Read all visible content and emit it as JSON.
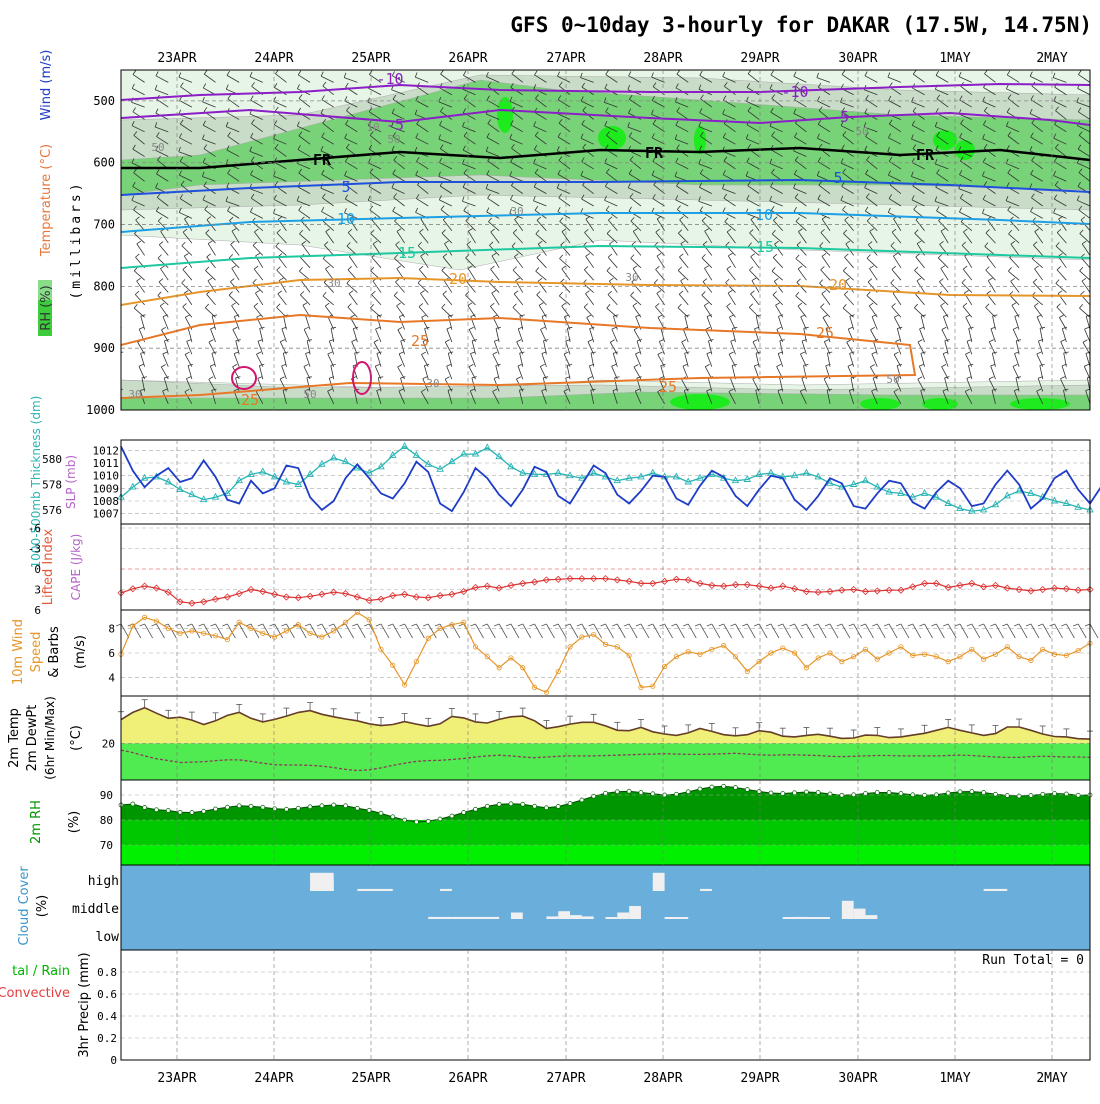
{
  "title": "GFS 0~10day 3-hourly for DAKAR (17.5W, 14.75N)",
  "date_labels": [
    "23APR",
    "24APR",
    "25APR",
    "26APR",
    "27APR",
    "28APR",
    "29APR",
    "30APR",
    "1MAY",
    "2MAY"
  ],
  "colors": {
    "temp_cold": "#8c1ec8",
    "temp_freezing": "#000000",
    "temp_blue": "#1e50dc",
    "temp_sky": "#1ea0e6",
    "temp_teal": "#1ec8a0",
    "temp_orange": "#e69628",
    "temp_darkorange": "#e67828",
    "rh_light": "#e6f5e6",
    "rh_mid": "#c8dcc8",
    "rh_green": "#78d278",
    "rh_bright": "#1eeb1e",
    "slp": "#1e3cc8",
    "thick": "#28b4b4",
    "lifted": "#dc3232",
    "wind10": "#e69628",
    "temp2m_fill": "#f0f078",
    "dew_fill": "#50eb50",
    "rh2m_dark": "#009600",
    "rh2m_mid": "#00c800",
    "rh2m_light": "#00f000",
    "cloud_bg": "#6aaedc",
    "cloud_bar": "#f0f0f0"
  },
  "panels": {
    "upper": {
      "labels": {
        "rh": "RH (%)",
        "temp": "Temperature (°C)",
        "wind": "Wind (m/s)",
        "pres": "(millibars)"
      },
      "yticks": [
        "500",
        "600",
        "700",
        "800",
        "900",
        "1000"
      ],
      "contour_labels": [
        {
          "t": "-10",
          "c": "temp_cold"
        },
        {
          "t": "-10",
          "c": "temp_cold"
        },
        {
          "t": "-5",
          "c": "temp_cold"
        },
        {
          "t": "-5",
          "c": "temp_cold"
        },
        {
          "t": "FR",
          "c": "temp_freezing"
        },
        {
          "t": "FR",
          "c": "temp_freezing"
        },
        {
          "t": "FR",
          "c": "temp_freezing"
        },
        {
          "t": "5",
          "c": "temp_blue"
        },
        {
          "t": "5",
          "c": "temp_blue"
        },
        {
          "t": "10",
          "c": "temp_sky"
        },
        {
          "t": "10",
          "c": "temp_sky"
        },
        {
          "t": "15",
          "c": "temp_teal"
        },
        {
          "t": "15",
          "c": "temp_teal"
        },
        {
          "t": "20",
          "c": "temp_orange"
        },
        {
          "t": "20",
          "c": "temp_orange"
        },
        {
          "t": "25",
          "c": "temp_darkorange"
        },
        {
          "t": "25",
          "c": "temp_darkorange"
        },
        {
          "t": "25",
          "c": "temp_darkorange"
        },
        {
          "t": "25",
          "c": "temp_darkorange"
        },
        {
          "t": "10",
          "c": "rh_label"
        },
        {
          "t": "50",
          "c": "rh_label"
        },
        {
          "t": "50",
          "c": "rh_label"
        },
        {
          "t": "50",
          "c": "rh_label"
        },
        {
          "t": "30",
          "c": "rh_label"
        },
        {
          "t": "30",
          "c": "rh_label"
        },
        {
          "t": "30",
          "c": "rh_label"
        },
        {
          "t": "30",
          "c": "rh_label"
        },
        {
          "t": "50",
          "c": "rh_label"
        },
        {
          "t": "30",
          "c": "rh_label"
        },
        {
          "t": "50",
          "c": "rh_label"
        }
      ]
    },
    "slp": {
      "label_thick": "1000-500mb Thickness (dm)",
      "label_slp": "SLP (mb)",
      "left_ticks": [
        "580",
        "578",
        "576"
      ],
      "right_ticks": [
        "1012",
        "1011",
        "1010",
        "1009",
        "1008",
        "1007"
      ]
    },
    "li": {
      "label_li": "Lifted Index",
      "label_cape": "CAPE (J/kg)",
      "yticks": [
        "-6",
        "-3",
        "0",
        "3",
        "6"
      ]
    },
    "wind": {
      "label_a": "10m Wind",
      "label_b": "Speed",
      "label_c": "& Barbs",
      "label_unit": "(m/s)",
      "yticks": [
        "8",
        "6",
        "4"
      ]
    },
    "temp2m": {
      "label_a": "2m Temp",
      "label_b": "2m DewPt",
      "label_c": "(6hr Min/Max)",
      "label_unit": "(°C)",
      "yticks": [
        "20"
      ]
    },
    "rh2m": {
      "label": "2m RH",
      "label_unit": "(%)",
      "yticks": [
        "90",
        "80",
        "70"
      ]
    },
    "cloud": {
      "label": "Cloud Cover",
      "label_unit": "(%)",
      "levels": [
        "high",
        "middle",
        "low"
      ]
    },
    "precip": {
      "label_a": "tal / Rain",
      "label_b": "Convective",
      "label_c": "3hr Precip (mm)",
      "yticks": [
        "0.8",
        "0.6",
        "0.4",
        "0.2",
        "0"
      ],
      "run_total": "Run Total = 0"
    }
  },
  "chart_data": [
    {
      "type": "line",
      "title": "SLP (mb)",
      "ylim": [
        1006.5,
        1012.5
      ],
      "series": [
        {
          "name": "SLP (mb)",
          "values": [
            1012.3,
            1010.4,
            1009.1,
            1010.0,
            1010.6,
            1009.5,
            1009.8,
            1011.2,
            1009.9,
            1008.1,
            1007.8,
            1009.6,
            1008.6,
            1009.0,
            1010.8,
            1010.6,
            1008.3,
            1007.3,
            1008.0,
            1009.8,
            1010.9,
            1009.8,
            1008.6,
            1008.2,
            1009.4,
            1011.1,
            1010.3,
            1007.8,
            1007.2,
            1008.7,
            1010.6,
            1009.8,
            1008.5,
            1007.6,
            1008.9,
            1010.7,
            1010.3,
            1008.4,
            1007.8,
            1009.3,
            1010.8,
            1010.2,
            1008.5,
            1007.8,
            1008.8,
            1010.0,
            1009.9,
            1008.2,
            1007.7,
            1009.2,
            1010.4,
            1009.9,
            1008.4,
            1007.6,
            1008.9,
            1010.0,
            1009.8,
            1008.1,
            1007.3,
            1008.4,
            1009.8,
            1009.4,
            1007.6,
            1007.4,
            1008.6,
            1009.6,
            1009.4,
            1007.9,
            1007.4,
            1008.7,
            1009.6,
            1009.0,
            1007.6,
            1007.8,
            1009.3,
            1010.4,
            1009.3,
            1007.4,
            1008.2,
            1009.8,
            1010.4,
            1008.9,
            1007.8,
            1009.2
          ]
        }
      ]
    },
    {
      "type": "line",
      "title": "1000-500mb Thickness (dm)",
      "ylim": [
        575.2,
        581.2
      ],
      "series": [
        {
          "name": "1000-500mb Thickness (dm)",
          "values": [
            577.0,
            577.8,
            578.5,
            578.6,
            578.2,
            577.6,
            577.2,
            576.8,
            577.0,
            577.3,
            578.3,
            578.8,
            579.0,
            578.6,
            578.2,
            578.0,
            578.8,
            579.6,
            580.1,
            579.8,
            579.3,
            578.9,
            579.4,
            580.3,
            581.0,
            580.3,
            579.6,
            579.2,
            579.8,
            580.4,
            580.4,
            580.9,
            580.2,
            579.4,
            578.9,
            578.8,
            578.8,
            578.9,
            578.7,
            578.5,
            578.9,
            578.6,
            578.3,
            578.5,
            578.6,
            578.9,
            578.6,
            578.6,
            578.2,
            578.5,
            578.8,
            578.5,
            578.3,
            578.4,
            578.8,
            578.9,
            578.6,
            578.7,
            578.9,
            578.6,
            578.1,
            577.8,
            578.0,
            578.3,
            577.8,
            577.4,
            577.3,
            577.0,
            577.3,
            577.0,
            576.5,
            576.1,
            575.9,
            576.0,
            576.4,
            577.1,
            577.5,
            577.3,
            577.0,
            576.7,
            576.5,
            576.2,
            576.0
          ]
        }
      ]
    },
    {
      "type": "line",
      "title": "Lifted Index",
      "ylim": [
        -6,
        6
      ],
      "series": [
        {
          "name": "Lifted Index",
          "values": [
            3.5,
            2.9,
            2.5,
            2.8,
            3.4,
            4.8,
            5.0,
            4.8,
            4.4,
            4.1,
            3.6,
            3.0,
            3.3,
            3.7,
            4.1,
            4.2,
            4.0,
            3.7,
            3.4,
            3.6,
            4.1,
            4.6,
            4.4,
            3.9,
            3.7,
            4.1,
            4.2,
            3.9,
            3.7,
            3.3,
            2.7,
            2.5,
            2.8,
            2.4,
            2.1,
            1.9,
            1.6,
            1.5,
            1.4,
            1.4,
            1.4,
            1.4,
            1.6,
            1.8,
            2.1,
            2.1,
            1.8,
            1.5,
            1.6,
            2.1,
            2.4,
            2.5,
            2.3,
            2.3,
            2.5,
            2.8,
            2.5,
            2.9,
            3.3,
            3.4,
            3.3,
            3.1,
            3.0,
            3.3,
            3.2,
            3.1,
            3.1,
            2.6,
            2.1,
            2.1,
            2.7,
            2.4,
            2.1,
            2.6,
            2.4,
            2.8,
            3.0,
            3.2,
            3.0,
            2.8,
            2.9,
            3.1,
            3.0
          ]
        }
      ]
    },
    {
      "type": "line",
      "title": "10m Wind Speed (m/s)",
      "ylim": [
        2.5,
        9.5
      ],
      "series": [
        {
          "name": "Speed",
          "values": [
            5.9,
            8.2,
            8.9,
            8.6,
            8.0,
            7.6,
            7.8,
            7.6,
            7.4,
            7.1,
            8.5,
            8.0,
            7.6,
            7.3,
            7.8,
            8.3,
            7.6,
            7.3,
            7.8,
            8.5,
            9.3,
            8.7,
            6.3,
            5.0,
            3.4,
            5.3,
            7.2,
            8.0,
            8.3,
            8.5,
            6.5,
            5.7,
            4.8,
            5.6,
            4.8,
            3.2,
            2.8,
            4.5,
            6.5,
            7.3,
            7.5,
            6.7,
            6.5,
            5.8,
            3.2,
            3.3,
            4.9,
            5.7,
            6.1,
            5.9,
            6.3,
            6.6,
            5.7,
            4.5,
            5.3,
            6.0,
            6.4,
            6.0,
            4.8,
            5.6,
            6.0,
            5.3,
            5.7,
            6.3,
            5.5,
            6.0,
            6.5,
            5.8,
            5.9,
            5.7,
            5.3,
            5.7,
            6.3,
            5.5,
            5.9,
            6.5,
            5.7,
            5.4,
            6.3,
            5.9,
            5.8,
            6.2,
            6.8
          ]
        }
      ]
    },
    {
      "type": "area",
      "title": "2m Temp / DewPt (°C)",
      "ylim": [
        10,
        33
      ],
      "series": [
        {
          "name": "2m Temp",
          "values": [
            26.5,
            28.5,
            29.8,
            28.3,
            26.9,
            27.2,
            26.4,
            25.2,
            26.2,
            27.7,
            28.5,
            26.9,
            25.9,
            26.6,
            27.5,
            28.5,
            29.0,
            28.0,
            27.3,
            26.7,
            26.2,
            25.4,
            24.9,
            25.2,
            26.0,
            25.3,
            24.7,
            25.4,
            27.4,
            27.0,
            25.9,
            25.6,
            26.6,
            27.3,
            27.5,
            26.2,
            24.1,
            24.6,
            25.3,
            25.8,
            25.8,
            24.8,
            23.6,
            23.5,
            24.4,
            23.2,
            22.6,
            22.2,
            22.9,
            24.1,
            23.3,
            22.4,
            22.1,
            22.4,
            23.5,
            23.1,
            22.0,
            21.8,
            22.2,
            22.5,
            22.0,
            21.4,
            21.5,
            22.3,
            22.2,
            21.6,
            21.8,
            22.3,
            22.8,
            23.6,
            24.4,
            23.6,
            22.9,
            22.2,
            22.7,
            24.5,
            24.5,
            23.6,
            22.6,
            21.9,
            21.8,
            21.3,
            21.2
          ]
        },
        {
          "name": "2m DewPt",
          "values": [
            18.2,
            17.5,
            16.6,
            15.8,
            15.3,
            14.8,
            14.9,
            15.0,
            15.3,
            15.5,
            15.5,
            15.1,
            14.6,
            14.2,
            14.1,
            14.1,
            14.0,
            13.8,
            13.4,
            12.9,
            12.6,
            12.8,
            13.3,
            14.0,
            14.6,
            15.1,
            15.3,
            15.4,
            15.6,
            15.9,
            16.3,
            16.6,
            16.8,
            16.6,
            16.3,
            16.1,
            16.3,
            16.5,
            16.6,
            16.6,
            16.6,
            16.7,
            16.8,
            16.9,
            17.0,
            17.1,
            17.2,
            17.1,
            17.0,
            17.0,
            17.1,
            17.2,
            17.3,
            17.1,
            16.9,
            16.8,
            16.9,
            16.9,
            16.8,
            16.7,
            16.5,
            16.4,
            16.5,
            16.6,
            16.7,
            16.7,
            16.6,
            16.6,
            16.6,
            16.6,
            16.7,
            16.8,
            16.7,
            16.5,
            16.3,
            16.2,
            16.2,
            16.4,
            16.5,
            16.4,
            16.3,
            16.3,
            16.2
          ]
        }
      ]
    },
    {
      "type": "area",
      "title": "2m RH (%)",
      "ylim": [
        62,
        96
      ],
      "series": [
        {
          "name": "2m RH",
          "values": [
            86.0,
            86.4,
            85.0,
            84.1,
            83.8,
            83.1,
            83.0,
            83.5,
            84.4,
            85.1,
            85.7,
            85.5,
            85.1,
            84.5,
            84.3,
            84.7,
            85.3,
            85.7,
            86.0,
            85.7,
            84.7,
            83.9,
            82.7,
            81.3,
            80.0,
            79.2,
            79.5,
            80.4,
            81.6,
            83.0,
            84.3,
            85.5,
            86.3,
            86.5,
            86.3,
            85.5,
            84.9,
            85.4,
            86.6,
            88.0,
            89.5,
            90.7,
            91.3,
            91.5,
            91.0,
            90.5,
            90.0,
            90.3,
            91.3,
            92.4,
            93.2,
            93.5,
            93.0,
            92.2,
            91.4,
            90.8,
            90.6,
            90.9,
            91.2,
            91.0,
            90.4,
            89.9,
            90.1,
            90.6,
            91.0,
            91.0,
            90.6,
            90.1,
            89.9,
            90.1,
            90.8,
            91.3,
            91.4,
            91.0,
            90.3,
            89.8,
            89.6,
            89.8,
            90.3,
            90.6,
            90.4,
            89.9,
            90.0
          ]
        }
      ]
    },
    {
      "type": "bar",
      "title": "Cloud Cover (%)",
      "series": [
        {
          "name": "high",
          "values": [
            [
              16,
              2,
              70
            ],
            [
              17,
              1,
              40
            ],
            [
              20,
              1,
              8
            ],
            [
              21,
              2,
              8
            ],
            [
              27,
              1,
              8
            ],
            [
              45,
              1,
              70
            ],
            [
              49,
              1,
              8
            ],
            [
              73,
              2,
              8
            ]
          ]
        },
        {
          "name": "middle",
          "values": [
            [
              26,
              1,
              8
            ],
            [
              27,
              1,
              8
            ],
            [
              28,
              4,
              8
            ],
            [
              33,
              1,
              25
            ],
            [
              36,
              1,
              10
            ],
            [
              37,
              1,
              30
            ],
            [
              38,
              1,
              15
            ],
            [
              39,
              1,
              10
            ],
            [
              41,
              1,
              6
            ],
            [
              42,
              1,
              25
            ],
            [
              43,
              1,
              50
            ],
            [
              46,
              2,
              3
            ],
            [
              56,
              4,
              6
            ],
            [
              57,
              1,
              8
            ],
            [
              61,
              1,
              70
            ],
            [
              62,
              1,
              40
            ],
            [
              63,
              1,
              15
            ]
          ]
        }
      ]
    },
    {
      "type": "bar",
      "title": "3hr Precip (mm)",
      "ylim": [
        0,
        1
      ],
      "series": [
        {
          "name": "3hr Precip",
          "values": []
        }
      ]
    }
  ]
}
